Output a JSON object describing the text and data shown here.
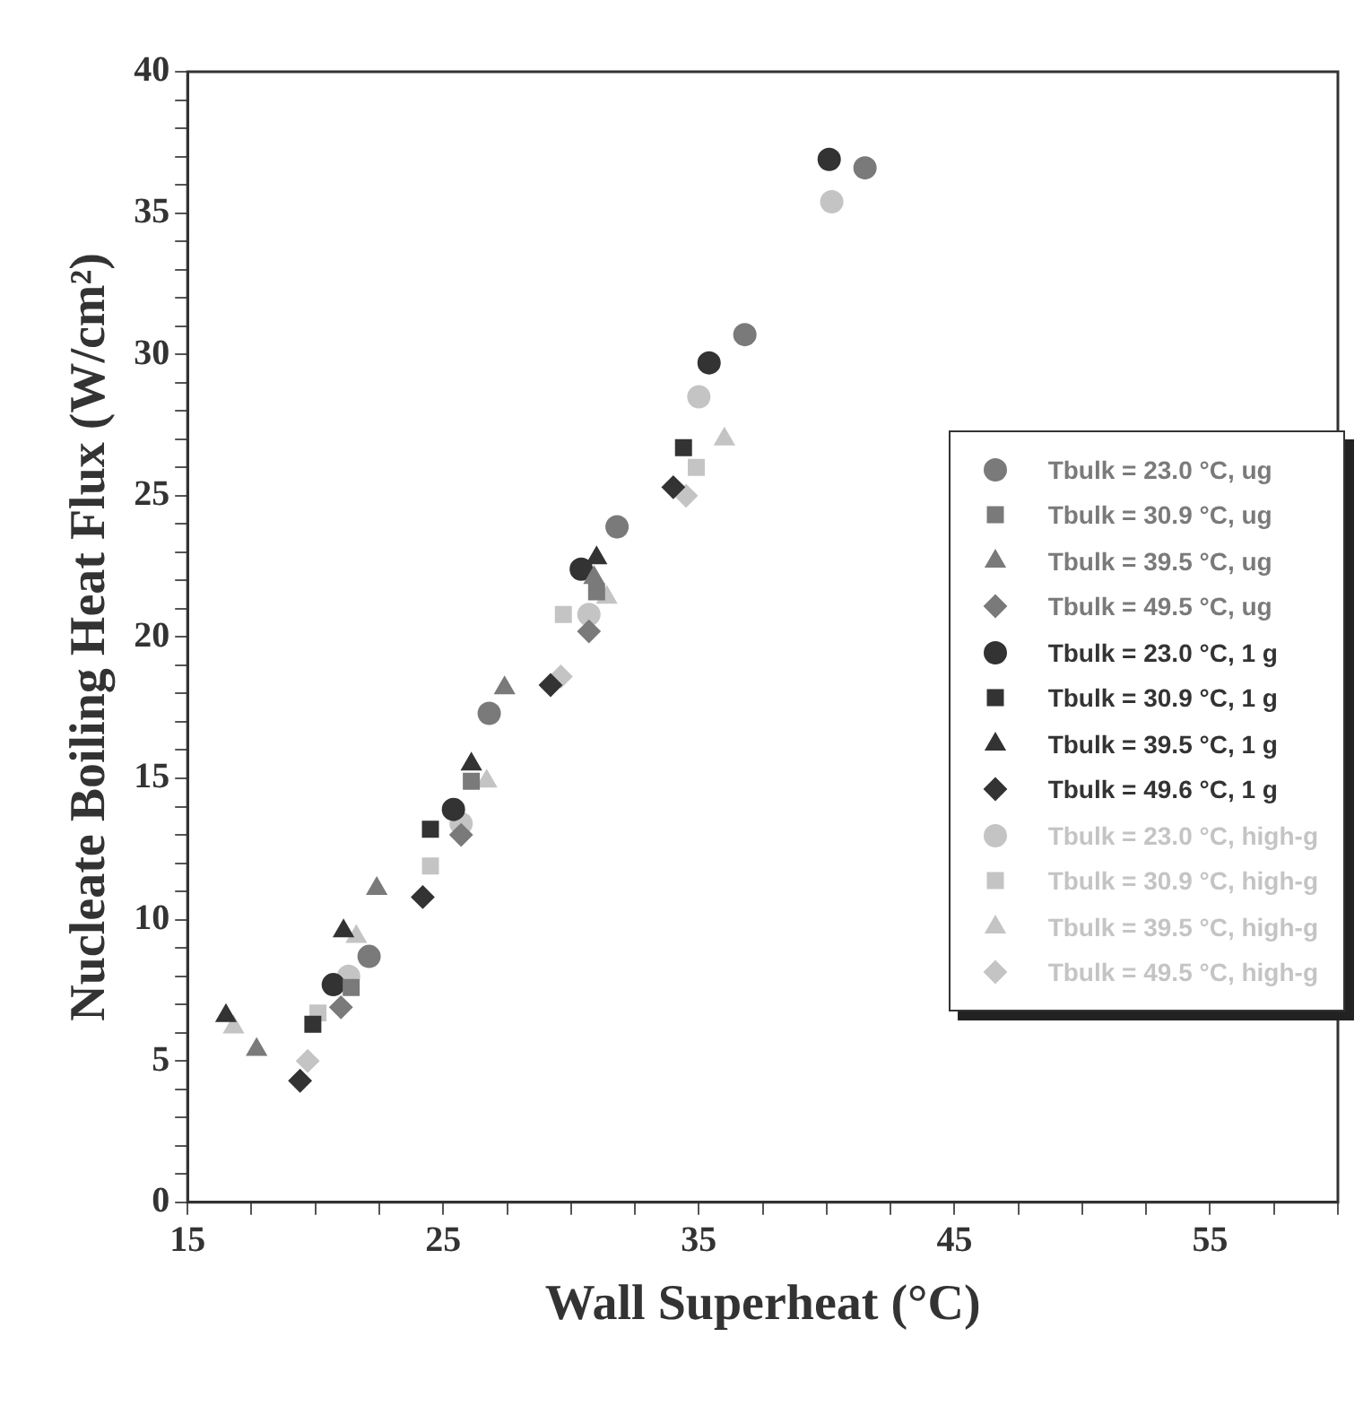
{
  "chart_data": {
    "type": "scatter",
    "xlabel": "Wall Superheat (°C)",
    "ylabel": "Nucleate Boiling Heat Flux (W/cm²)",
    "xlim": [
      15,
      60
    ],
    "ylim": [
      0,
      40
    ],
    "xticks": [
      15,
      {
        "value": 17.5,
        "label": null
      },
      {
        "value": 20,
        "label": null
      },
      {
        "value": 22.5,
        "label": null
      },
      25,
      {
        "value": 27.5,
        "label": null
      },
      {
        "value": 30,
        "label": null
      },
      {
        "value": 32.5,
        "label": null
      },
      35,
      {
        "value": 37.5,
        "label": null
      },
      {
        "value": 40,
        "label": null
      },
      {
        "value": 42.5,
        "label": null
      },
      45,
      {
        "value": 47.5,
        "label": null
      },
      {
        "value": 50,
        "label": null
      },
      {
        "value": 52.5,
        "label": null
      },
      55,
      {
        "value": 57.5,
        "label": null
      },
      {
        "value": 60,
        "label": null
      }
    ],
    "yticks": [
      0,
      {
        "value": 1,
        "label": null
      },
      {
        "value": 2,
        "label": null
      },
      {
        "value": 3,
        "label": null
      },
      {
        "value": 4,
        "label": null
      },
      5,
      {
        "value": 6,
        "label": null
      },
      {
        "value": 7,
        "label": null
      },
      {
        "value": 8,
        "label": null
      },
      {
        "value": 9,
        "label": null
      },
      10,
      {
        "value": 11,
        "label": null
      },
      {
        "value": 12,
        "label": null
      },
      {
        "value": 13,
        "label": null
      },
      {
        "value": 14,
        "label": null
      },
      15,
      {
        "value": 16,
        "label": null
      },
      {
        "value": 17,
        "label": null
      },
      {
        "value": 18,
        "label": null
      },
      {
        "value": 19,
        "label": null
      },
      20,
      {
        "value": 21,
        "label": null
      },
      {
        "value": 22,
        "label": null
      },
      {
        "value": 23,
        "label": null
      },
      {
        "value": 24,
        "label": null
      },
      25,
      {
        "value": 26,
        "label": null
      },
      {
        "value": 27,
        "label": null
      },
      {
        "value": 28,
        "label": null
      },
      {
        "value": 29,
        "label": null
      },
      30,
      {
        "value": 31,
        "label": null
      },
      {
        "value": 32,
        "label": null
      },
      {
        "value": 33,
        "label": null
      },
      {
        "value": 34,
        "label": null
      },
      35,
      {
        "value": 36,
        "label": null
      },
      {
        "value": 37,
        "label": null
      },
      {
        "value": 38,
        "label": null
      },
      {
        "value": 39,
        "label": null
      },
      40
    ],
    "grid": false,
    "legend": "right",
    "series": [
      {
        "name": "Tbulk = 23.0 °C, ug",
        "color": "#7a7a7a",
        "marker": "circle",
        "x": [
          22.1,
          26.8,
          31.8,
          36.8,
          41.5
        ],
        "values": [
          8.7,
          17.3,
          23.9,
          30.7,
          36.6
        ]
      },
      {
        "name": "Tbulk = 30.9 °C, ug",
        "color": "#7a7a7a",
        "marker": "square",
        "x": [
          21.4,
          26.1,
          31.0
        ],
        "values": [
          7.6,
          14.9,
          21.6
        ]
      },
      {
        "name": "Tbulk = 39.5 °C, ug",
        "color": "#7a7a7a",
        "marker": "triangle",
        "x": [
          17.7,
          22.4,
          27.4,
          30.9
        ],
        "values": [
          5.4,
          11.1,
          18.2,
          22.1
        ]
      },
      {
        "name": "Tbulk = 49.5 °C, ug",
        "color": "#7a7a7a",
        "marker": "diamond",
        "x": [
          21.0,
          25.7,
          30.7
        ],
        "values": [
          6.9,
          13.0,
          20.2
        ]
      },
      {
        "name": "Tbulk = 23.0 °C, 1 g",
        "color": "#333333",
        "marker": "circle",
        "x": [
          20.7,
          25.4,
          30.4,
          35.4,
          40.1
        ],
        "values": [
          7.7,
          13.9,
          22.4,
          29.7,
          36.9
        ]
      },
      {
        "name": "Tbulk = 30.9 °C, 1 g",
        "color": "#333333",
        "marker": "square",
        "x": [
          19.9,
          24.5,
          34.4
        ],
        "values": [
          6.3,
          13.2,
          26.7
        ]
      },
      {
        "name": "Tbulk = 39.5 °C, 1 g",
        "color": "#333333",
        "marker": "triangle",
        "x": [
          16.5,
          21.1,
          26.1,
          31.0
        ],
        "values": [
          6.6,
          9.6,
          15.5,
          22.8
        ]
      },
      {
        "name": "Tbulk = 49.6 °C, 1 g",
        "color": "#333333",
        "marker": "diamond",
        "x": [
          19.4,
          24.2,
          29.2,
          34.0
        ],
        "values": [
          4.3,
          10.8,
          18.3,
          25.3
        ]
      },
      {
        "name": "Tbulk = 23.0 °C, high-g",
        "color": "#c4c4c4",
        "marker": "circle",
        "x": [
          21.3,
          25.7,
          30.7,
          35.0,
          40.2
        ],
        "values": [
          8.0,
          13.4,
          20.8,
          28.5,
          35.4
        ]
      },
      {
        "name": "Tbulk = 30.9 °C, high-g",
        "color": "#c4c4c4",
        "marker": "square",
        "x": [
          20.1,
          24.5,
          29.7,
          34.9
        ],
        "values": [
          6.7,
          11.9,
          20.8,
          26.0
        ]
      },
      {
        "name": "Tbulk = 39.5 °C, high-g",
        "color": "#c4c4c4",
        "marker": "triangle",
        "x": [
          16.8,
          21.6,
          26.7,
          31.4,
          36.0
        ],
        "values": [
          6.2,
          9.4,
          14.9,
          21.4,
          27.0
        ]
      },
      {
        "name": "Tbulk = 49.5 °C, high-g",
        "color": "#c4c4c4",
        "marker": "diamond",
        "x": [
          19.7,
          29.6,
          34.5
        ],
        "values": [
          5.0,
          18.6,
          25.0
        ]
      }
    ]
  }
}
